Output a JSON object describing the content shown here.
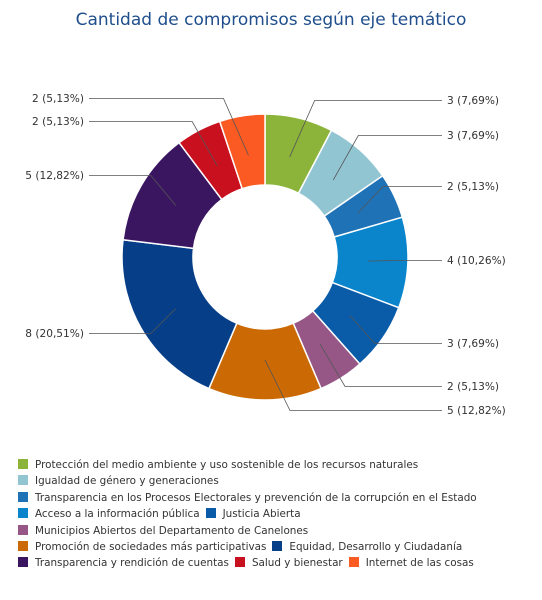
{
  "chart_data": {
    "type": "pie",
    "title": "Cantidad de compromisos según eje temático",
    "slices": [
      {
        "name": "Protección del medio ambiente y uso sostenible de los recursos naturales",
        "value": 3,
        "label": "3 (7,69%)",
        "color": "#8cb43a"
      },
      {
        "name": "Igualdad de género y generaciones",
        "value": 3,
        "label": "3 (7,69%)",
        "color": "#92c5d2"
      },
      {
        "name": "Transparencia en los Procesos Electorales y prevención de la corrupción en el Estado",
        "value": 2,
        "label": "2 (5,13%)",
        "color": "#1f72b6"
      },
      {
        "name": "Acceso a la información pública",
        "value": 4,
        "label": "4 (10,26%)",
        "color": "#0a85cc"
      },
      {
        "name": "Justicia Abierta",
        "value": 3,
        "label": "3 (7,69%)",
        "color": "#0a5ba8"
      },
      {
        "name": "Municipios Abiertos del Departamento de Canelones",
        "value": 2,
        "label": "2 (5,13%)",
        "color": "#965787"
      },
      {
        "name": "Promoción de sociedades más participativas",
        "value": 5,
        "label": "5 (12,82%)",
        "color": "#cb6a05"
      },
      {
        "name": "Equidad, Desarrollo y Ciudadanía",
        "value": 8,
        "label": "8 (20,51%)",
        "color": "#063f88"
      },
      {
        "name": "Transparencia y rendición de cuentas",
        "value": 5,
        "label": "5 (12,82%)",
        "color": "#3a1660"
      },
      {
        "name": "Salud y bienestar",
        "value": 2,
        "label": "2 (5,13%)",
        "color": "#c8101e"
      },
      {
        "name": "Internet de las cosas",
        "value": 2,
        "label": "2 (5,13%)",
        "color": "#fc5a23"
      }
    ],
    "legend_placement": "bottom"
  },
  "legend_rows": [
    [
      0
    ],
    [
      1
    ],
    [
      2
    ],
    [
      3,
      4
    ],
    [
      5
    ],
    [
      6,
      7
    ],
    [
      8,
      9,
      10
    ]
  ]
}
